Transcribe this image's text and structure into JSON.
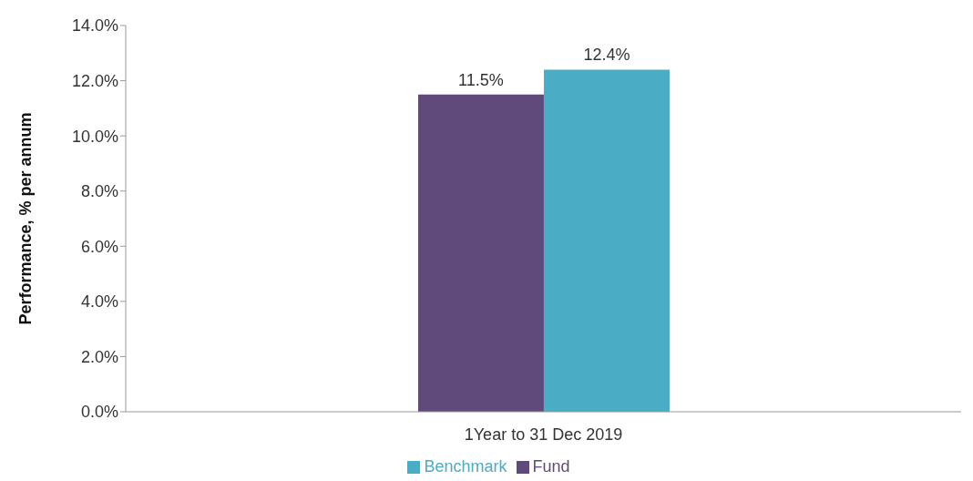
{
  "chart_data": {
    "type": "bar",
    "categories": [
      "1Year to 31 Dec 2019"
    ],
    "ylabel": "Performance, % per annum",
    "series": [
      {
        "name": "Fund",
        "color": "#604a7b",
        "values": [
          11.5
        ],
        "value_labels": [
          "11.5%"
        ]
      },
      {
        "name": "Benchmark",
        "color": "#4bacc6",
        "values": [
          12.4
        ],
        "value_labels": [
          "12.4%"
        ]
      }
    ],
    "ylim": [
      0,
      14
    ],
    "yticks": [
      {
        "value": 0,
        "label": "0.0%"
      },
      {
        "value": 2,
        "label": "2.0%"
      },
      {
        "value": 4,
        "label": "4.0%"
      },
      {
        "value": 6,
        "label": "6.0%"
      },
      {
        "value": 8,
        "label": "8.0%"
      },
      {
        "value": 10,
        "label": "10.0%"
      },
      {
        "value": 12,
        "label": "12.0%"
      },
      {
        "value": 14,
        "label": "14.0%"
      }
    ],
    "grid": false,
    "legend": "bottom"
  }
}
